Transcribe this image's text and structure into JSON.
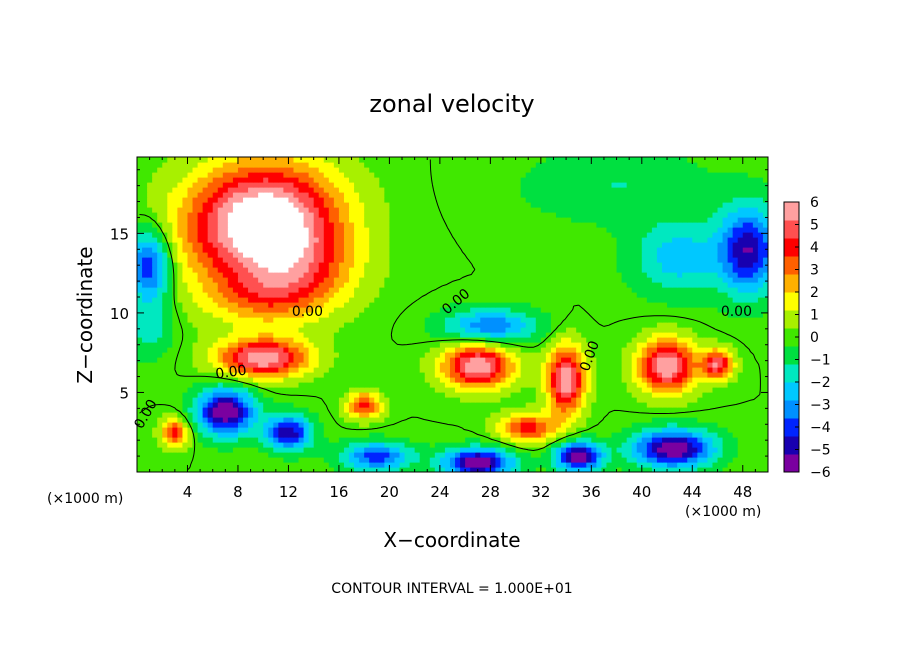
{
  "chart_data": {
    "type": "heatmap",
    "title": "zonal velocity",
    "xlabel": "X−coordinate",
    "ylabel": "Z−coordinate",
    "x_unit_left": "(×1000 m)",
    "x_unit_right": "(×1000 m)",
    "xlim": [
      0,
      50
    ],
    "ylim": [
      0,
      19.8
    ],
    "x_ticks": [
      4,
      8,
      12,
      16,
      20,
      24,
      28,
      32,
      36,
      40,
      44,
      48
    ],
    "y_ticks": [
      5,
      10,
      15
    ],
    "colorbar": {
      "ticks": [
        6,
        5,
        4,
        3,
        2,
        1,
        0,
        -1,
        -2,
        -3,
        -4,
        -5,
        -6
      ],
      "tick_labels": [
        "6",
        "5",
        "4",
        "3",
        "2",
        "1",
        "0",
        "−1",
        "−2",
        "−3",
        "−4",
        "−5",
        "−6"
      ],
      "range": [
        -6,
        6
      ],
      "colors": [
        "#7a00a0",
        "#1800b0",
        "#0024ff",
        "#0090ff",
        "#00c8ff",
        "#00e8c0",
        "#00e040",
        "#40e800",
        "#a8f000",
        "#ffff00",
        "#ffb000",
        "#ff6000",
        "#ff0000",
        "#ff5050",
        "#ffa0a0"
      ]
    },
    "contour_labels": [
      "0.00",
      "0.00",
      "0.00",
      "0.00",
      "0.00",
      "0.00"
    ],
    "footer": "CONTOUR INTERVAL = 1.000E+01",
    "regions": [
      {
        "x": 11,
        "z": 16.5,
        "v": 4.5,
        "rx": 6,
        "rz": 3.5
      },
      {
        "x": 8,
        "z": 15,
        "v": 3.5,
        "rx": 6,
        "rz": 4
      },
      {
        "x": 13,
        "z": 13,
        "v": 3.0,
        "rx": 5,
        "rz": 3
      },
      {
        "x": 10,
        "z": 11,
        "v": 2.0,
        "rx": 5,
        "rz": 2
      },
      {
        "x": 1,
        "z": 13,
        "v": -4.5,
        "rx": 1.8,
        "rz": 2.5
      },
      {
        "x": 1,
        "z": 9,
        "v": -1.5,
        "rx": 2,
        "rz": 2
      },
      {
        "x": 48.5,
        "z": 14,
        "v": -5.0,
        "rx": 2.5,
        "rz": 3
      },
      {
        "x": 43,
        "z": 13.5,
        "v": -2.5,
        "rx": 4,
        "rz": 2.5
      },
      {
        "x": 38,
        "z": 18,
        "v": -1.2,
        "rx": 8,
        "rz": 2.5
      },
      {
        "x": 28,
        "z": 9.2,
        "v": -3.5,
        "rx": 4,
        "rz": 1.2
      },
      {
        "x": 10,
        "z": 7.2,
        "v": 6,
        "rx": 3.8,
        "rz": 1.3
      },
      {
        "x": 27,
        "z": 6.7,
        "v": 6,
        "rx": 3.0,
        "rz": 1.5
      },
      {
        "x": 34,
        "z": 5.8,
        "v": 6,
        "rx": 1.6,
        "rz": 2.3
      },
      {
        "x": 42,
        "z": 6.7,
        "v": 6,
        "rx": 2.5,
        "rz": 1.8
      },
      {
        "x": 46,
        "z": 6.8,
        "v": 5,
        "rx": 1.3,
        "rz": 1.0
      },
      {
        "x": 7,
        "z": 3.8,
        "v": -6,
        "rx": 2.5,
        "rz": 1.6
      },
      {
        "x": 12,
        "z": 2.5,
        "v": -5,
        "rx": 2.0,
        "rz": 1.2
      },
      {
        "x": 18,
        "z": 4.2,
        "v": 4,
        "rx": 1.5,
        "rz": 0.9
      },
      {
        "x": 42.5,
        "z": 1.5,
        "v": -6,
        "rx": 3.5,
        "rz": 1.3
      },
      {
        "x": 27,
        "z": 0.6,
        "v": -6,
        "rx": 3,
        "rz": 1.0
      },
      {
        "x": 35,
        "z": 1.0,
        "v": -6,
        "rx": 2,
        "rz": 1.0
      },
      {
        "x": 19,
        "z": 1.0,
        "v": -4,
        "rx": 3,
        "rz": 1.0
      },
      {
        "x": 3,
        "z": 2.5,
        "v": 4,
        "rx": 1.2,
        "rz": 1.0
      },
      {
        "x": 31,
        "z": 2.8,
        "v": 4,
        "rx": 2.5,
        "rz": 1.0
      }
    ]
  }
}
